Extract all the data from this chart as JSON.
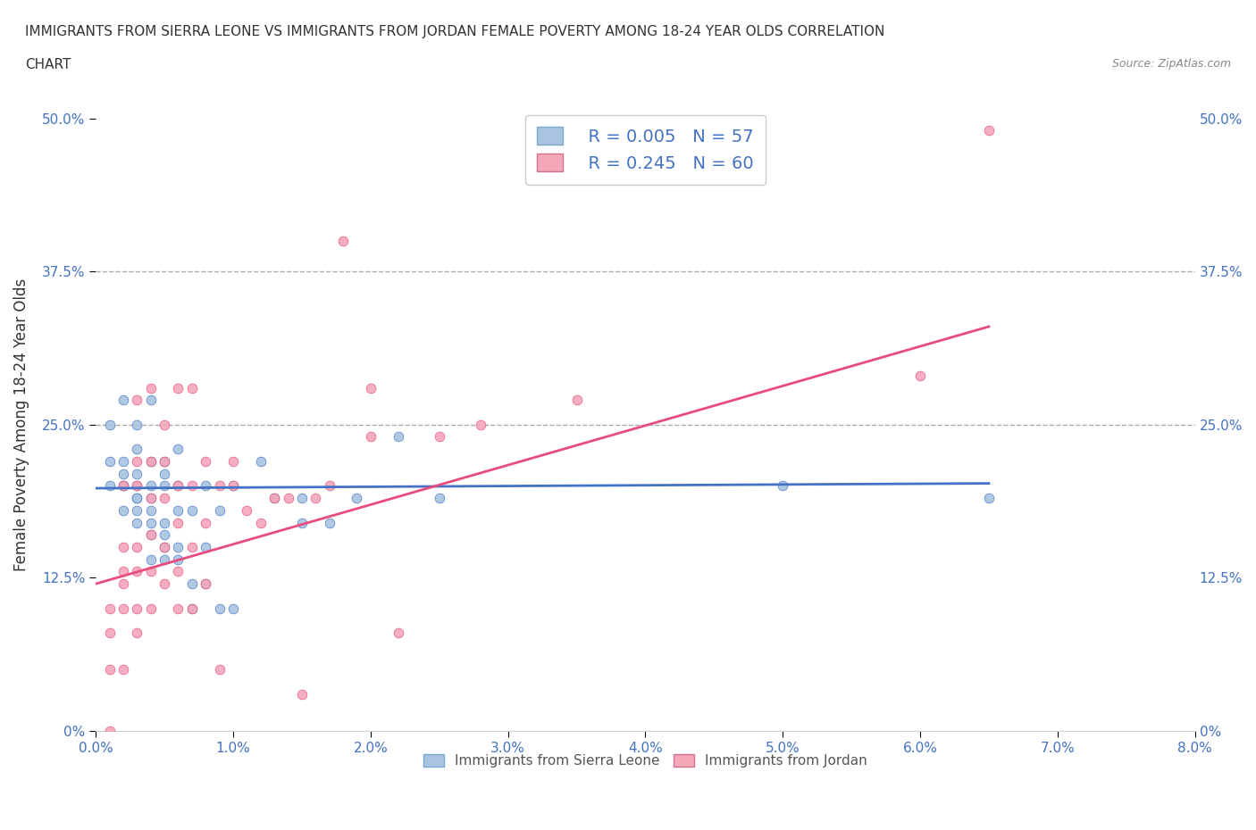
{
  "title_line1": "IMMIGRANTS FROM SIERRA LEONE VS IMMIGRANTS FROM JORDAN FEMALE POVERTY AMONG 18-24 YEAR OLDS CORRELATION",
  "title_line2": "CHART",
  "source_text": "Source: ZipAtlas.com",
  "xlabel": "Immigrants from Sierra Leone",
  "ylabel": "Female Poverty Among 18-24 Year Olds",
  "xlim": [
    0.0,
    0.08
  ],
  "ylim": [
    0.0,
    0.5
  ],
  "xticks": [
    0.0,
    0.01,
    0.02,
    0.03,
    0.04,
    0.05,
    0.06,
    0.07,
    0.08
  ],
  "yticks": [
    0.0,
    0.125,
    0.25,
    0.375,
    0.5
  ],
  "ytick_labels": [
    "0%",
    "12.5%",
    "25.0%",
    "37.5%",
    "50.0%"
  ],
  "xtick_labels": [
    "0.0%",
    "1.0%",
    "2.0%",
    "3.0%",
    "4.0%",
    "5.0%",
    "6.0%",
    "7.0%",
    "8.0%"
  ],
  "color_sl": "#a8c4e0",
  "color_jordan": "#f4a7b9",
  "color_sl_line": "#4472c4",
  "color_jordan_line": "#e84c7d",
  "color_text": "#4472c4",
  "legend_r_sl": "R = 0.005",
  "legend_n_sl": "N = 57",
  "legend_r_jordan": "R = 0.245",
  "legend_n_jordan": "N = 60",
  "dashed_line_y1": 0.25,
  "dashed_line_y2": 0.375,
  "sl_x": [
    0.001,
    0.001,
    0.001,
    0.002,
    0.002,
    0.002,
    0.002,
    0.002,
    0.002,
    0.003,
    0.003,
    0.003,
    0.003,
    0.003,
    0.003,
    0.003,
    0.003,
    0.004,
    0.004,
    0.004,
    0.004,
    0.004,
    0.004,
    0.004,
    0.004,
    0.005,
    0.005,
    0.005,
    0.005,
    0.005,
    0.005,
    0.005,
    0.006,
    0.006,
    0.006,
    0.006,
    0.006,
    0.007,
    0.007,
    0.007,
    0.008,
    0.008,
    0.008,
    0.009,
    0.009,
    0.01,
    0.01,
    0.012,
    0.013,
    0.015,
    0.015,
    0.017,
    0.019,
    0.022,
    0.025,
    0.05,
    0.065
  ],
  "sl_y": [
    0.2,
    0.22,
    0.25,
    0.18,
    0.2,
    0.2,
    0.21,
    0.22,
    0.27,
    0.17,
    0.18,
    0.19,
    0.19,
    0.2,
    0.21,
    0.23,
    0.25,
    0.14,
    0.16,
    0.17,
    0.18,
    0.19,
    0.2,
    0.22,
    0.27,
    0.14,
    0.15,
    0.16,
    0.17,
    0.2,
    0.21,
    0.22,
    0.14,
    0.15,
    0.18,
    0.2,
    0.23,
    0.1,
    0.12,
    0.18,
    0.12,
    0.15,
    0.2,
    0.1,
    0.18,
    0.1,
    0.2,
    0.22,
    0.19,
    0.17,
    0.19,
    0.17,
    0.19,
    0.24,
    0.19,
    0.2,
    0.19
  ],
  "jordan_x": [
    0.001,
    0.001,
    0.001,
    0.001,
    0.002,
    0.002,
    0.002,
    0.002,
    0.002,
    0.002,
    0.003,
    0.003,
    0.003,
    0.003,
    0.003,
    0.003,
    0.003,
    0.004,
    0.004,
    0.004,
    0.004,
    0.004,
    0.004,
    0.005,
    0.005,
    0.005,
    0.005,
    0.005,
    0.006,
    0.006,
    0.006,
    0.006,
    0.006,
    0.007,
    0.007,
    0.007,
    0.007,
    0.008,
    0.008,
    0.008,
    0.009,
    0.009,
    0.01,
    0.01,
    0.011,
    0.012,
    0.013,
    0.014,
    0.015,
    0.016,
    0.017,
    0.018,
    0.02,
    0.02,
    0.022,
    0.025,
    0.028,
    0.035,
    0.06,
    0.065
  ],
  "jordan_y": [
    0.0,
    0.05,
    0.08,
    0.1,
    0.05,
    0.1,
    0.12,
    0.13,
    0.15,
    0.2,
    0.08,
    0.1,
    0.13,
    0.15,
    0.2,
    0.22,
    0.27,
    0.1,
    0.13,
    0.16,
    0.19,
    0.22,
    0.28,
    0.12,
    0.15,
    0.19,
    0.22,
    0.25,
    0.1,
    0.13,
    0.17,
    0.2,
    0.28,
    0.1,
    0.15,
    0.2,
    0.28,
    0.12,
    0.17,
    0.22,
    0.05,
    0.2,
    0.2,
    0.22,
    0.18,
    0.17,
    0.19,
    0.19,
    0.03,
    0.19,
    0.2,
    0.4,
    0.24,
    0.28,
    0.08,
    0.24,
    0.25,
    0.27,
    0.29,
    0.49
  ],
  "sl_trend_x": [
    0.0,
    0.065
  ],
  "sl_trend_y": [
    0.198,
    0.202
  ],
  "jordan_trend_x": [
    0.0,
    0.065
  ],
  "jordan_trend_y": [
    0.12,
    0.33
  ],
  "background_color": "#ffffff",
  "grid_color": "#e0e0e0"
}
